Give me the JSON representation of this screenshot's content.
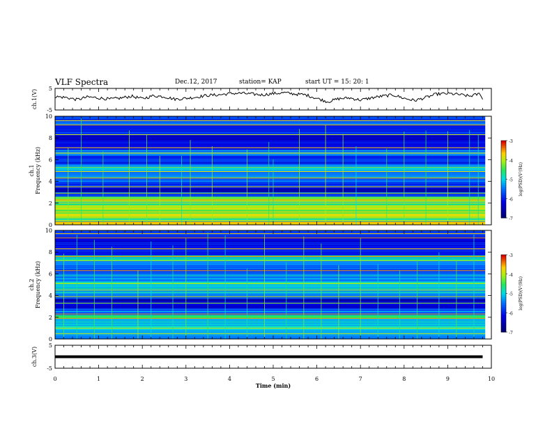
{
  "header": {
    "title": "VLF Spectra",
    "date": "Dec.12, 2017",
    "station": "station= KAP",
    "start": "start  UT =   15: 20: 1"
  },
  "chart_data": [
    {
      "type": "line",
      "ylabel": "ch.1(V)",
      "ylim": [
        -5,
        5
      ],
      "yticks": [
        "5",
        "-5"
      ],
      "x_unit": "Time (min)",
      "series": [
        {
          "x": [
            0,
            0.25,
            0.5,
            0.75,
            1,
            1.25,
            1.5,
            1.75,
            2,
            2.25,
            2.5,
            2.75,
            3,
            3.25,
            3.5,
            3.75,
            4,
            4.25,
            4.5,
            4.75,
            5,
            5.25,
            5.5,
            5.75,
            6,
            6.25,
            6.5,
            6.75,
            7,
            7.25,
            7.5,
            7.75,
            8,
            8.25,
            8.5,
            8.75,
            9,
            9.25,
            9.5,
            9.75,
            9.8
          ],
          "values": [
            1.2,
            0.8,
            -0.2,
            1.0,
            0.6,
            0.0,
            0.5,
            1.4,
            0.2,
            1.6,
            1.2,
            0.0,
            0.4,
            1.0,
            1.8,
            2.0,
            2.6,
            2.8,
            2.4,
            2.0,
            2.6,
            3.0,
            2.4,
            2.0,
            0.4,
            -1.2,
            0.2,
            0.6,
            -0.4,
            0.6,
            1.4,
            2.0,
            0.4,
            -0.6,
            0.8,
            2.4,
            2.6,
            2.2,
            1.4,
            2.6,
            -0.2
          ]
        }
      ]
    },
    {
      "type": "heatmap",
      "ylabel": "ch.1\nFrequency (kHz)",
      "ylim": [
        0,
        10
      ],
      "yticks": [
        "0",
        "2",
        "4",
        "6",
        "8",
        "10"
      ],
      "colorbar": {
        "label": "log(PSD)(V²/Hz)",
        "range": [
          -7,
          -3
        ],
        "ticks": [
          "-3",
          "-4",
          "-5",
          "-6",
          "-7"
        ]
      },
      "bands": [
        {
          "lo": 0.0,
          "hi": 0.3,
          "v": 0.85
        },
        {
          "lo": 0.3,
          "hi": 0.6,
          "v": 0.55
        },
        {
          "lo": 0.6,
          "hi": 1.0,
          "v": 0.78
        },
        {
          "lo": 1.0,
          "hi": 1.4,
          "v": 0.62
        },
        {
          "lo": 1.4,
          "hi": 1.8,
          "v": 0.74
        },
        {
          "lo": 1.8,
          "hi": 2.1,
          "v": 0.58
        },
        {
          "lo": 2.1,
          "hi": 2.6,
          "v": 0.7
        },
        {
          "lo": 2.6,
          "hi": 3.0,
          "v": 0.3
        },
        {
          "lo": 3.0,
          "hi": 3.4,
          "v": 0.12
        },
        {
          "lo": 3.4,
          "hi": 3.8,
          "v": 0.24
        },
        {
          "lo": 3.8,
          "hi": 4.3,
          "v": 0.34
        },
        {
          "lo": 4.3,
          "hi": 4.9,
          "v": 0.4
        },
        {
          "lo": 4.9,
          "hi": 5.3,
          "v": 0.48
        },
        {
          "lo": 5.3,
          "hi": 5.6,
          "v": 0.38
        },
        {
          "lo": 5.6,
          "hi": 6.4,
          "v": 0.26
        },
        {
          "lo": 6.4,
          "hi": 6.9,
          "v": 0.42
        },
        {
          "lo": 6.9,
          "hi": 7.6,
          "v": 0.22
        },
        {
          "lo": 7.6,
          "hi": 8.4,
          "v": 0.18
        },
        {
          "lo": 8.4,
          "hi": 9.2,
          "v": 0.26
        },
        {
          "lo": 9.2,
          "hi": 9.6,
          "v": 0.34
        },
        {
          "lo": 9.6,
          "hi": 10.0,
          "v": 0.3
        }
      ],
      "lines": [
        0.4,
        0.8,
        1.0,
        1.2,
        1.6,
        2.0,
        2.3,
        2.9,
        3.5,
        4.3,
        4.9,
        5.3,
        6.6,
        7.1,
        8.3,
        9.2,
        9.6
      ],
      "bursts": [
        0.3,
        0.6,
        1.1,
        1.7,
        2.1,
        2.4,
        2.9,
        3.1,
        3.6,
        4.4,
        4.9,
        5.0,
        5.6,
        6.2,
        6.6,
        6.9,
        7.6,
        8.0,
        8.5,
        9.0,
        9.5,
        9.7
      ]
    },
    {
      "type": "heatmap",
      "ylabel": "ch.2\nFrequency (kHz)",
      "ylim": [
        0,
        10
      ],
      "yticks": [
        "0",
        "2",
        "4",
        "6",
        "8",
        "10"
      ],
      "colorbar": {
        "label": "log(PSD)(V²/Hz)",
        "range": [
          -7,
          -3
        ],
        "ticks": [
          "-3",
          "-4",
          "-5",
          "-6",
          "-7"
        ]
      },
      "bands": [
        {
          "lo": 0.0,
          "hi": 0.4,
          "v": 0.4
        },
        {
          "lo": 0.4,
          "hi": 0.9,
          "v": 0.46
        },
        {
          "lo": 0.9,
          "hi": 1.4,
          "v": 0.52
        },
        {
          "lo": 1.4,
          "hi": 1.9,
          "v": 0.44
        },
        {
          "lo": 1.9,
          "hi": 2.2,
          "v": 0.62
        },
        {
          "lo": 2.2,
          "hi": 2.8,
          "v": 0.36
        },
        {
          "lo": 2.8,
          "hi": 3.3,
          "v": 0.2
        },
        {
          "lo": 3.3,
          "hi": 3.7,
          "v": 0.14
        },
        {
          "lo": 3.7,
          "hi": 4.2,
          "v": 0.36
        },
        {
          "lo": 4.2,
          "hi": 4.8,
          "v": 0.46
        },
        {
          "lo": 4.8,
          "hi": 5.3,
          "v": 0.52
        },
        {
          "lo": 5.3,
          "hi": 6.0,
          "v": 0.4
        },
        {
          "lo": 6.0,
          "hi": 6.5,
          "v": 0.3
        },
        {
          "lo": 6.5,
          "hi": 7.2,
          "v": 0.38
        },
        {
          "lo": 7.2,
          "hi": 7.7,
          "v": 0.56
        },
        {
          "lo": 7.7,
          "hi": 8.6,
          "v": 0.24
        },
        {
          "lo": 8.6,
          "hi": 9.3,
          "v": 0.18
        },
        {
          "lo": 9.3,
          "hi": 10.0,
          "v": 0.3
        }
      ],
      "lines": [
        0.5,
        1.0,
        1.9,
        2.3,
        3.3,
        3.9,
        4.5,
        5.1,
        6.3,
        7.2,
        7.6,
        8.3,
        9.3,
        9.7
      ],
      "bursts": [
        0.2,
        0.5,
        0.9,
        1.3,
        1.9,
        2.2,
        2.7,
        3.0,
        3.5,
        3.9,
        4.4,
        4.8,
        5.3,
        5.7,
        6.1,
        6.5,
        7.0,
        7.4,
        7.9,
        8.3,
        8.8,
        9.2,
        9.6
      ]
    },
    {
      "type": "line",
      "ylabel": "ch.3(V)",
      "ylim": [
        -5,
        5
      ],
      "yticks": [
        "5",
        "-5"
      ],
      "series": [
        {
          "x": [
            0,
            9.8
          ],
          "values": [
            0,
            0
          ]
        }
      ]
    }
  ],
  "x_axis": {
    "label": "Time (min)",
    "range": [
      0,
      10
    ],
    "ticks": [
      "0",
      "1",
      "2",
      "3",
      "4",
      "5",
      "6",
      "7",
      "8",
      "9",
      "10"
    ]
  },
  "colors": {
    "axis": "#000000",
    "trace": "#000000"
  }
}
